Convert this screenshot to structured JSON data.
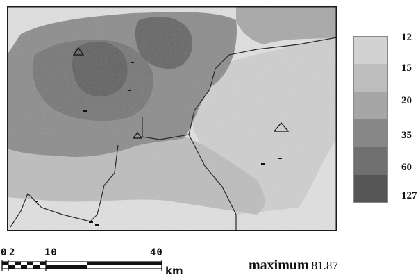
{
  "legend": {
    "classes": [
      {
        "label": "12",
        "color": "#d2d2d2"
      },
      {
        "label": "15",
        "color": "#bdbdbd"
      },
      {
        "label": "20",
        "color": "#a6a6a6"
      },
      {
        "label": "35",
        "color": "#878787"
      },
      {
        "label": "60",
        "color": "#6f6f6f"
      },
      {
        "label": "127",
        "color": "#555555"
      }
    ]
  },
  "scale": {
    "ticks": [
      "0",
      "2",
      "10",
      "40"
    ],
    "unit": "km"
  },
  "summary": {
    "label": "maximum",
    "value": "81.87"
  },
  "colors": {
    "frame": "#1a1a1a",
    "boundary": "#2a2a2a",
    "background": "#ffffff"
  },
  "map_symbols": [
    "triangle-marker",
    "triangle-marker",
    "station-marker",
    "boundary-line"
  ]
}
